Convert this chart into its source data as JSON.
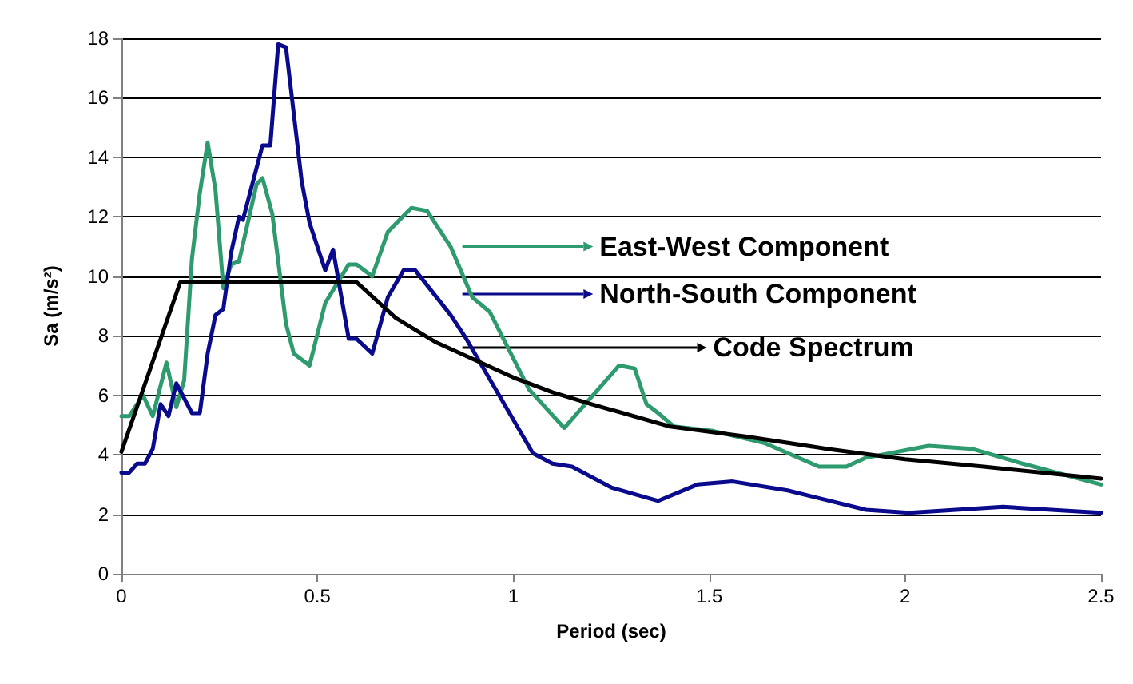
{
  "chart_data": {
    "type": "line",
    "xlabel": "Period (sec)",
    "ylabel": "Sa (m/s²)",
    "xlim": [
      0,
      2.5
    ],
    "xticks": [
      0,
      0.5,
      1,
      1.5,
      2,
      2.5
    ],
    "ylim": [
      0,
      18
    ],
    "yticks": [
      0,
      2,
      4,
      6,
      8,
      10,
      12,
      14,
      16,
      18
    ],
    "grid": "y",
    "legend": "right",
    "marker": "none",
    "line_style": "solid",
    "series": [
      {
        "name": "East-West Component",
        "color": "#2e9b6e",
        "x": [
          0,
          0.02,
          0.055,
          0.08,
          0.115,
          0.14,
          0.16,
          0.18,
          0.2,
          0.22,
          0.24,
          0.26,
          0.28,
          0.3,
          0.345,
          0.36,
          0.385,
          0.42,
          0.44,
          0.48,
          0.52,
          0.58,
          0.6,
          0.64,
          0.68,
          0.74,
          0.78,
          0.84,
          0.895,
          0.94,
          1.04,
          1.13,
          1.19,
          1.27,
          1.31,
          1.34,
          1.37,
          1.41,
          1.51,
          1.64,
          1.78,
          1.85,
          1.9,
          2.06,
          2.17,
          2.3,
          2.5
        ],
        "values": [
          5.3,
          5.3,
          6.0,
          5.3,
          7.1,
          5.6,
          6.5,
          10.6,
          12.8,
          14.5,
          12.9,
          9.6,
          10.4,
          10.5,
          13.1,
          13.3,
          12.1,
          8.4,
          7.4,
          7.0,
          9.1,
          10.4,
          10.4,
          10.0,
          11.5,
          12.3,
          12.2,
          11.0,
          9.3,
          8.8,
          6.2,
          4.9,
          5.8,
          7.0,
          6.9,
          5.7,
          5.4,
          4.95,
          4.8,
          4.4,
          3.6,
          3.6,
          3.9,
          4.3,
          4.2,
          3.7,
          3.0
        ]
      },
      {
        "name": "North-South Component",
        "color": "#0a0a8c",
        "x": [
          0,
          0.02,
          0.04,
          0.06,
          0.08,
          0.1,
          0.12,
          0.14,
          0.18,
          0.2,
          0.22,
          0.24,
          0.26,
          0.28,
          0.3,
          0.31,
          0.36,
          0.38,
          0.4,
          0.42,
          0.46,
          0.48,
          0.52,
          0.54,
          0.58,
          0.6,
          0.64,
          0.68,
          0.72,
          0.75,
          0.84,
          0.88,
          1.05,
          1.1,
          1.15,
          1.25,
          1.37,
          1.47,
          1.56,
          1.7,
          1.9,
          2.01,
          2.25,
          2.5
        ],
        "values": [
          3.4,
          3.4,
          3.7,
          3.7,
          4.2,
          5.7,
          5.3,
          6.4,
          5.4,
          5.4,
          7.4,
          8.7,
          8.9,
          10.8,
          12.0,
          11.9,
          14.4,
          14.4,
          17.8,
          17.7,
          13.2,
          11.8,
          10.2,
          10.9,
          7.9,
          7.9,
          7.4,
          9.3,
          10.2,
          10.2,
          8.7,
          7.9,
          4.05,
          3.7,
          3.6,
          2.9,
          2.45,
          3.0,
          3.1,
          2.8,
          2.15,
          2.05,
          2.25,
          2.05
        ]
      },
      {
        "name": "Code Spectrum",
        "color": "#000000",
        "x": [
          0,
          0.15,
          0.6,
          0.7,
          0.8,
          0.9,
          1.0,
          1.1,
          1.2,
          1.4,
          1.6,
          1.8,
          2.0,
          2.2,
          2.5
        ],
        "values": [
          4.1,
          9.8,
          9.8,
          8.6,
          7.8,
          7.2,
          6.6,
          6.1,
          5.7,
          4.95,
          4.6,
          4.2,
          3.85,
          3.6,
          3.2
        ]
      }
    ]
  }
}
